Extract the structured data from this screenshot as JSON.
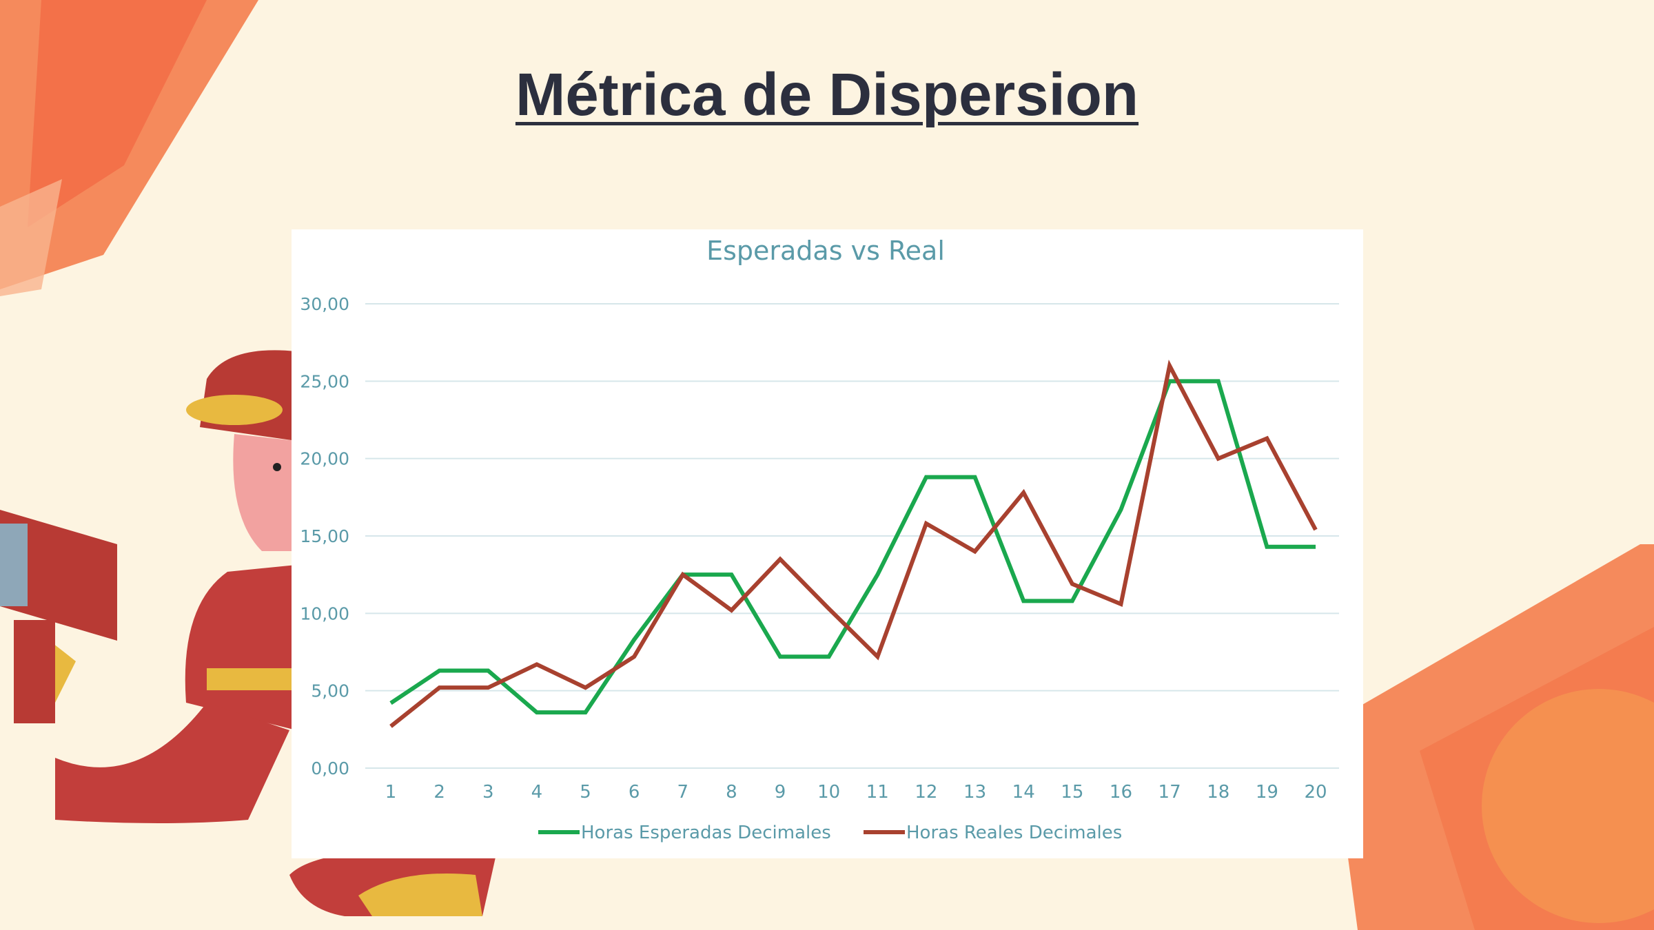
{
  "slide": {
    "title": "Métrica de Dispersion"
  },
  "colors": {
    "background": "#fdf4e1",
    "title": "#2c2f3e",
    "series_expected": "#1aa84e",
    "series_real": "#a8412f",
    "axis_text": "#5a9aa8",
    "gridline": "#d6e6ea"
  },
  "chart_data": {
    "type": "line",
    "title": "Esperadas vs Real",
    "xlabel": "",
    "ylabel": "",
    "categories": [
      "1",
      "2",
      "3",
      "4",
      "5",
      "6",
      "7",
      "8",
      "9",
      "10",
      "11",
      "12",
      "13",
      "14",
      "15",
      "16",
      "17",
      "18",
      "19",
      "20"
    ],
    "y_ticks": [
      "0,00",
      "5,00",
      "10,00",
      "15,00",
      "20,00",
      "25,00",
      "30,00"
    ],
    "ylim": [
      0,
      30
    ],
    "grid": "horizontal",
    "legend_position": "bottom",
    "series": [
      {
        "name": "Horas Esperadas Decimales",
        "color": "#1aa84e",
        "values": [
          4.2,
          6.3,
          6.3,
          3.6,
          3.6,
          8.3,
          12.5,
          12.5,
          7.2,
          7.2,
          12.5,
          18.8,
          18.8,
          10.8,
          10.8,
          16.7,
          25.0,
          25.0,
          14.3,
          14.3
        ]
      },
      {
        "name": "Horas Reales Decimales",
        "color": "#a8412f",
        "values": [
          2.7,
          5.2,
          5.2,
          6.7,
          5.2,
          7.2,
          12.5,
          10.2,
          13.5,
          10.3,
          7.2,
          15.8,
          14.0,
          17.8,
          11.9,
          10.6,
          26.0,
          20.0,
          21.3,
          15.4
        ]
      }
    ]
  }
}
